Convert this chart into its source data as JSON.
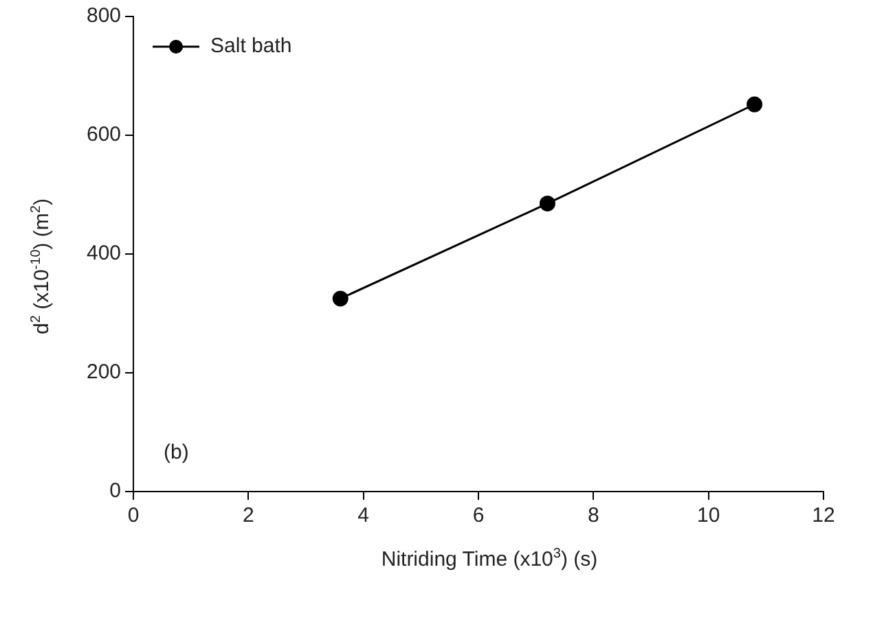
{
  "chart_data": {
    "type": "line",
    "xlabel": "Nitriding Time (x10$^{3}$) (s)",
    "ylabel": "d$^{2}$ (x10$^{-10}$) (m$^{2}$)",
    "x": [
      3.6,
      7.2,
      10.8
    ],
    "series": [
      {
        "name": "Salt bath",
        "color": "#000000",
        "values": [
          325,
          485,
          652
        ]
      }
    ],
    "xlim": [
      0,
      12
    ],
    "xticks": [
      0,
      2,
      4,
      6,
      8,
      10,
      12
    ],
    "ylim": [
      0,
      800
    ],
    "yticks": [
      0,
      200,
      400,
      600,
      800
    ],
    "grid": false,
    "legend": "top left",
    "marker": "circle",
    "line_style": "solid",
    "annotations": [
      "(b)"
    ]
  }
}
